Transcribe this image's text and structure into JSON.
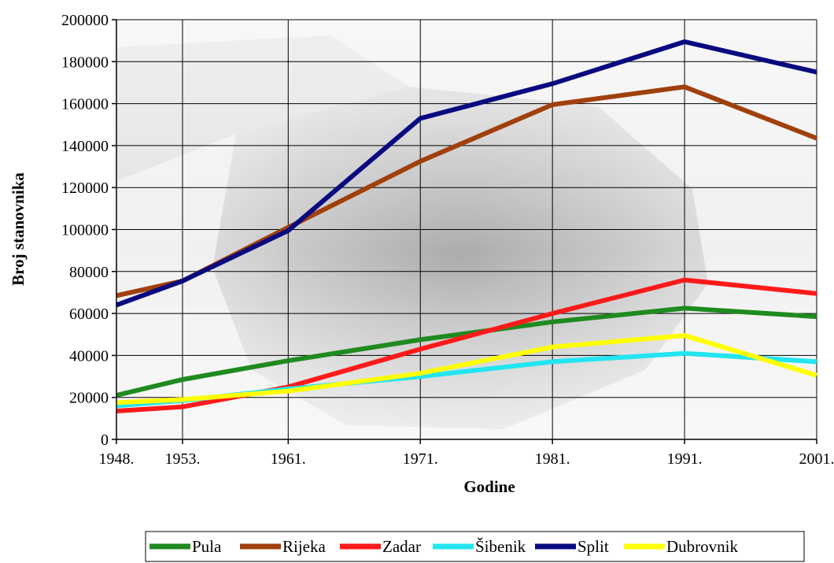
{
  "chart_data": {
    "type": "line",
    "title": "",
    "xlabel": "Godine",
    "ylabel": "Broj stanovnika",
    "ylim": [
      0,
      200000
    ],
    "yticks": [
      0,
      20000,
      40000,
      60000,
      80000,
      100000,
      120000,
      140000,
      160000,
      180000,
      200000
    ],
    "x": [
      1948,
      1953,
      1961,
      1971,
      1981,
      1991,
      2001
    ],
    "categories": [
      "1948.",
      "1953.",
      "1961.",
      "1971.",
      "1981.",
      "1991.",
      "2001."
    ],
    "grid": "horizontal and vertical",
    "legend": "bottom",
    "series": [
      {
        "name": "Pula",
        "color": "#1f8a1f",
        "values": [
          21000,
          28500,
          37500,
          47500,
          56000,
          62500,
          58500
        ]
      },
      {
        "name": "Rijeka",
        "color": "#a0400c",
        "values": [
          68500,
          75500,
          101000,
          132500,
          159500,
          168000,
          143500
        ]
      },
      {
        "name": "Zadar",
        "color": "#ff1a1a",
        "values": [
          13500,
          15500,
          25000,
          43000,
          60000,
          76000,
          69500
        ]
      },
      {
        "name": "Šibenik",
        "color": "#22e5f0",
        "values": [
          16000,
          18500,
          24000,
          30000,
          37000,
          41000,
          37000
        ]
      },
      {
        "name": "Split",
        "color": "#0a0a80",
        "values": [
          64000,
          75500,
          99500,
          153000,
          169500,
          189500,
          175000
        ]
      },
      {
        "name": "Dubrovnik",
        "color": "#ffff00",
        "values": [
          17500,
          19000,
          23000,
          31500,
          44000,
          49500,
          30500
        ]
      }
    ]
  }
}
